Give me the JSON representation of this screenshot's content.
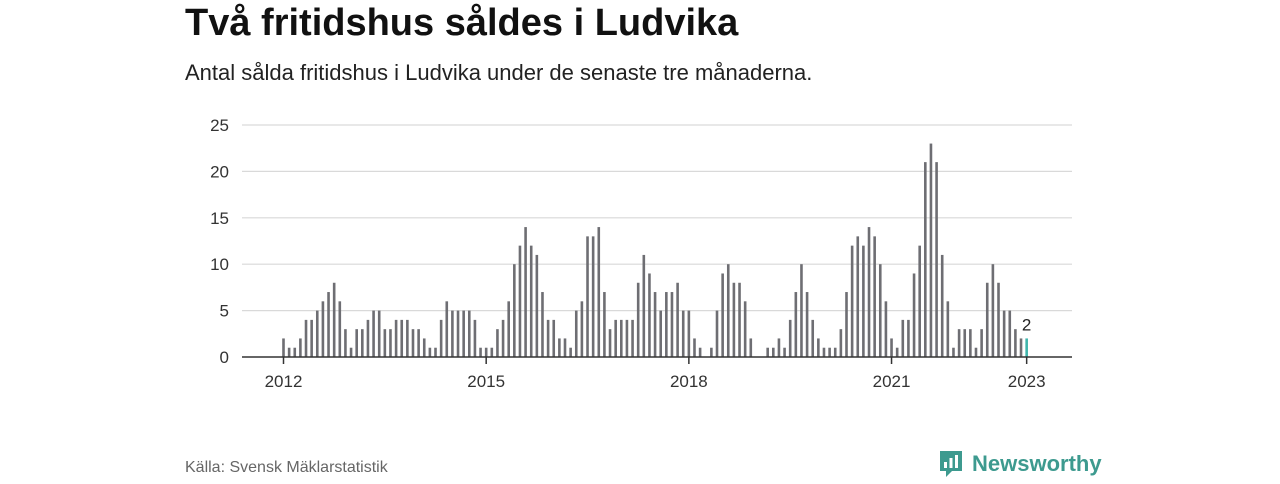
{
  "header": {
    "title": "Två fritidshus såldes i Ludvika",
    "subtitle": "Antal sålda fritidshus i Ludvika under de senaste tre månaderna."
  },
  "footer": {
    "source": "Källa: Svensk Mäklarstatistik",
    "brand": "Newsworthy",
    "brand_icon": "bar-chart-speech-bubble-icon",
    "brand_color": "#3d9a8f"
  },
  "chart_data": {
    "type": "bar",
    "title": "",
    "xlabel": "",
    "ylabel": "",
    "ylim": [
      0,
      25
    ],
    "yticks": [
      "0",
      "5",
      "10",
      "15",
      "20",
      "25"
    ],
    "xticks": [
      {
        "label": "2012",
        "index": 0
      },
      {
        "label": "2015",
        "index": 36
      },
      {
        "label": "2018",
        "index": 72
      },
      {
        "label": "2021",
        "index": 108
      },
      {
        "label": "2023",
        "index": 132
      }
    ],
    "grid": true,
    "bar_color": "#6e6e73",
    "highlight_color": "#3fb5ac",
    "highlight_index": 132,
    "highlight_label": "2",
    "values": [
      2,
      1,
      1,
      2,
      4,
      4,
      5,
      6,
      7,
      8,
      6,
      3,
      1,
      3,
      3,
      4,
      5,
      5,
      3,
      3,
      4,
      4,
      4,
      3,
      3,
      2,
      1,
      1,
      4,
      6,
      5,
      5,
      5,
      5,
      4,
      1,
      1,
      1,
      3,
      4,
      6,
      10,
      12,
      14,
      12,
      11,
      7,
      4,
      4,
      2,
      2,
      1,
      5,
      6,
      13,
      13,
      14,
      7,
      3,
      4,
      4,
      4,
      4,
      8,
      11,
      9,
      7,
      5,
      7,
      7,
      8,
      5,
      5,
      2,
      1,
      0,
      1,
      5,
      9,
      10,
      8,
      8,
      6,
      2,
      0,
      0,
      1,
      1,
      2,
      1,
      4,
      7,
      10,
      7,
      4,
      2,
      1,
      1,
      1,
      3,
      7,
      12,
      13,
      12,
      14,
      13,
      10,
      6,
      2,
      1,
      4,
      4,
      9,
      12,
      21,
      23,
      21,
      11,
      6,
      1,
      3,
      3,
      3,
      1,
      3,
      8,
      10,
      8,
      5,
      5,
      3,
      2,
      2
    ]
  }
}
